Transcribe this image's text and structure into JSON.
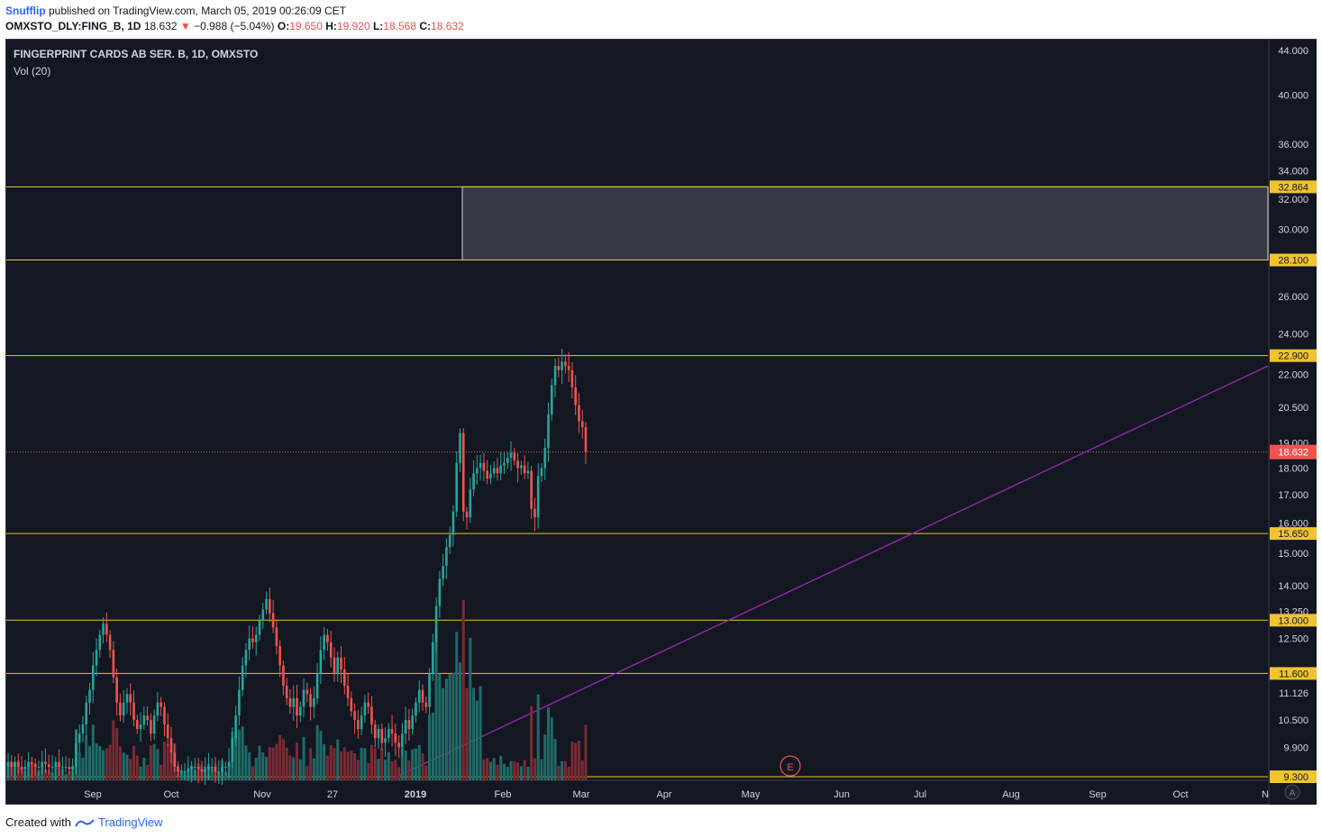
{
  "header": {
    "user": "Snufflip",
    "published": "published on TradingView.com, March 05, 2019 00:26:09 CET"
  },
  "symbol_bar": {
    "symbol": "OMXSTO_DLY:FING_B, 1D",
    "last": "18.632",
    "change_arrow": "▼",
    "change": "−0.988 (−5.04%)",
    "o_label": "O:",
    "o": "19.650",
    "h_label": "H:",
    "h": "19.920",
    "l_label": "L:",
    "l": "18.568",
    "c_label": "C:",
    "c": "18.632"
  },
  "legend": {
    "title": "FINGERPRINT CARDS AB SER. B, 1D, OMXSTO",
    "volume": "Vol (20)"
  },
  "footer": {
    "created": "Created with",
    "brand": "TradingView"
  },
  "colors": {
    "background": "#131722",
    "up": "#26a69a",
    "down": "#ef5350",
    "level": "#f0c330",
    "trendline": "#9c27b0",
    "zone": "#363a45",
    "vol_up": "#1f6b68",
    "vol_down": "#7a2b33"
  },
  "chart_data": {
    "type": "candlestick",
    "scale": "log",
    "ylim": [
      9.3,
      44.0
    ],
    "y_ticks": [
      "44.000",
      "40.000",
      "36.000",
      "34.000",
      "32.000",
      "30.000",
      "26.000",
      "24.000",
      "22.000",
      "20.500",
      "19.000",
      "18.000",
      "17.000",
      "16.000",
      "15.000",
      "14.000",
      "13.250",
      "12.500",
      "11.126",
      "10.500",
      "9.900"
    ],
    "x_labels": [
      "Sep",
      "Oct",
      "Nov",
      "27",
      "2019",
      "Feb",
      "Mar",
      "Apr",
      "May",
      "Jun",
      "Jul",
      "Aug",
      "Sep",
      "Oct",
      "N"
    ],
    "level_lines": [
      {
        "price": 32.864,
        "label": "32.864"
      },
      {
        "price": 28.1,
        "label": "28.100"
      },
      {
        "price": 22.9,
        "label": "22.900"
      },
      {
        "price": 15.65,
        "label": "15.650"
      },
      {
        "price": 13.0,
        "label": "13.000"
      },
      {
        "price": 11.6,
        "label": "11.600"
      },
      {
        "price": 9.3,
        "label": "9.300"
      }
    ],
    "last_price": {
      "price": 18.632,
      "label": "18.632"
    },
    "zone": {
      "from_label": "2019",
      "top": 32.864,
      "bottom": 28.1
    },
    "trendline": {
      "from": [
        "Jan 2019",
        9.3
      ],
      "through": [
        "Oct 2019",
        22.4
      ]
    },
    "earnings_marker": "E",
    "candles_close": [
      9.6,
      9.5,
      9.6,
      9.5,
      9.45,
      9.5,
      9.6,
      9.55,
      9.5,
      9.5,
      9.6,
      9.55,
      9.5,
      9.5,
      9.6,
      9.5,
      9.5,
      9.5,
      9.45,
      9.5,
      10.0,
      10.2,
      10.4,
      10.9,
      11.2,
      11.8,
      12.2,
      12.6,
      12.9,
      12.6,
      12.2,
      11.5,
      10.9,
      10.6,
      10.9,
      11.1,
      10.9,
      10.5,
      10.3,
      10.4,
      10.6,
      10.5,
      10.2,
      10.6,
      10.9,
      10.8,
      10.4,
      10.1,
      9.8,
      9.5,
      9.4,
      9.4,
      9.4,
      9.45,
      9.5,
      9.5,
      9.45,
      9.4,
      9.45,
      9.5,
      9.5,
      9.4,
      9.4,
      9.5,
      9.5,
      9.6,
      10.1,
      10.6,
      11.2,
      11.8,
      12.2,
      12.5,
      12.4,
      12.6,
      13.0,
      13.3,
      13.6,
      13.2,
      12.8,
      12.3,
      11.8,
      11.3,
      11.0,
      10.8,
      11.0,
      10.6,
      10.8,
      11.2,
      11.1,
      10.8,
      11.0,
      11.6,
      12.2,
      12.6,
      12.4,
      12.0,
      11.6,
      12.0,
      11.7,
      11.3,
      11.0,
      10.7,
      10.5,
      10.3,
      10.6,
      10.9,
      10.8,
      10.4,
      10.1,
      10.3,
      10.0,
      10.1,
      10.3,
      10.2,
      10.0,
      9.9,
      10.2,
      10.5,
      10.3,
      10.6,
      10.9,
      11.2,
      10.9,
      10.8,
      11.6,
      12.4,
      13.4,
      14.2,
      14.6,
      15.2,
      15.6,
      16.4,
      18.2,
      19.4,
      16.4,
      16.2,
      17.2,
      17.8,
      18.0,
      18.2,
      17.9,
      17.6,
      17.8,
      18.0,
      17.8,
      18.1,
      18.2,
      18.4,
      18.6,
      18.3,
      18.0,
      18.1,
      17.8,
      17.9,
      16.5,
      16.2,
      17.7,
      18.0,
      18.8,
      20.2,
      21.5,
      22.4,
      22.2,
      22.6,
      22.4,
      22.2,
      21.4,
      20.6,
      19.9,
      19.65,
      18.632
    ],
    "volume_note": "volume histogram (Vol 20) along the bottom of the pane"
  }
}
